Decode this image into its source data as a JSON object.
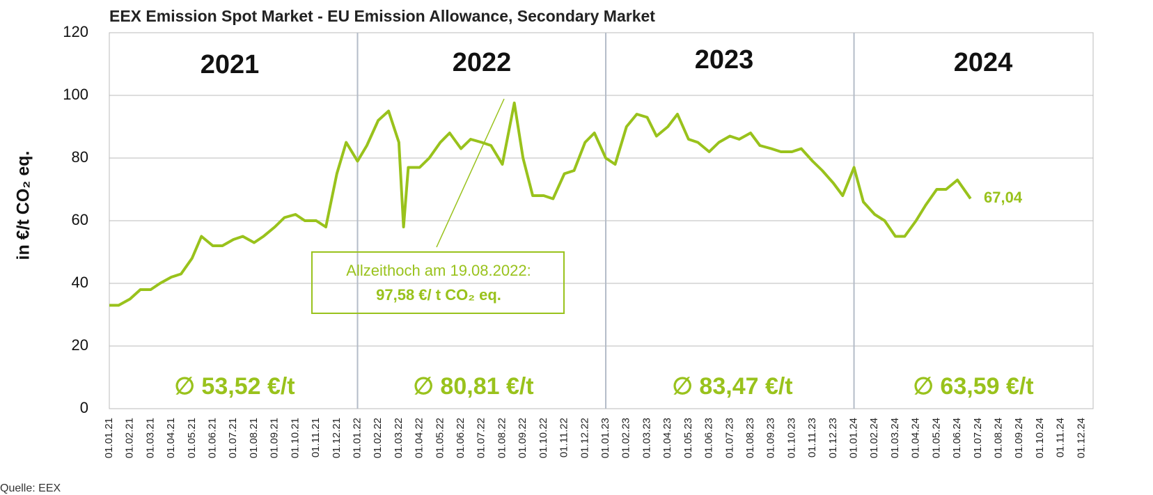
{
  "chart_data": {
    "type": "line",
    "title": "EEX Emission Spot Market - EU Emission Allowance, Secondary Market",
    "y_label": "in €/t CO₂ eq.",
    "source": "Quelle: EEX",
    "categories": [
      "01.01.21",
      "01.02.21",
      "01.03.21",
      "01.04.21",
      "01.05.21",
      "01.06.21",
      "01.07.21",
      "01.08.21",
      "01.09.21",
      "01.10.21",
      "01.11.21",
      "01.12.21",
      "01.01.22",
      "01.02.22",
      "01.03.22",
      "01.04.22",
      "01.05.22",
      "01.06.22",
      "01.07.22",
      "01.08.22",
      "01.09.22",
      "01.10.22",
      "01.11.22",
      "01.12.22",
      "01.01.23",
      "01.02.23",
      "01.03.23",
      "01.04.23",
      "01.05.23",
      "01.06.23",
      "01.07.23",
      "01.08.23",
      "01.09.23",
      "01.10.23",
      "01.11.23",
      "01.12.23",
      "01.01.24",
      "01.02.24",
      "01.03.24",
      "01.04.24",
      "01.05.24",
      "01.06.24",
      "01.07.24",
      "01.08.24",
      "01.09.24",
      "01.10.24",
      "01.11.24",
      "01.12.24"
    ],
    "series": [
      {
        "color": "#99c21c",
        "x": [
          "01.01.21",
          "15.01.21",
          "01.02.21",
          "15.02.21",
          "01.03.21",
          "15.03.21",
          "01.04.21",
          "15.04.21",
          "01.05.21",
          "15.05.21",
          "01.06.21",
          "15.06.21",
          "01.07.21",
          "15.07.21",
          "01.08.21",
          "15.08.21",
          "01.09.21",
          "15.09.21",
          "01.10.21",
          "15.10.21",
          "01.11.21",
          "15.11.21",
          "01.12.21",
          "15.12.21",
          "01.01.22",
          "15.01.22",
          "01.02.22",
          "15.02.22",
          "01.03.22",
          "08.03.22",
          "15.03.22",
          "01.04.22",
          "15.04.22",
          "01.05.22",
          "15.05.22",
          "01.06.22",
          "15.06.22",
          "01.07.22",
          "15.07.22",
          "01.08.22",
          "19.08.22",
          "01.09.22",
          "15.09.22",
          "01.10.22",
          "15.10.22",
          "01.11.22",
          "15.11.22",
          "01.12.22",
          "15.12.22",
          "01.01.23",
          "15.01.23",
          "01.02.23",
          "15.02.23",
          "01.03.23",
          "15.03.23",
          "01.04.23",
          "15.04.23",
          "01.05.23",
          "15.05.23",
          "01.06.23",
          "15.06.23",
          "01.07.23",
          "15.07.23",
          "01.08.23",
          "15.08.23",
          "01.09.23",
          "15.09.23",
          "01.10.23",
          "15.10.23",
          "01.11.23",
          "15.11.23",
          "01.12.23",
          "15.12.23",
          "01.01.24",
          "15.01.24",
          "01.02.24",
          "15.02.24",
          "01.03.24",
          "15.03.24",
          "01.04.24",
          "15.04.24",
          "01.05.24",
          "15.05.24",
          "01.06.24",
          "20.06.24"
        ],
        "values": [
          33,
          33,
          35,
          38,
          38,
          40,
          42,
          43,
          48,
          55,
          52,
          52,
          54,
          55,
          53,
          55,
          58,
          61,
          62,
          60,
          60,
          58,
          75,
          85,
          79,
          84,
          92,
          95,
          85,
          58,
          77,
          77,
          80,
          85,
          88,
          83,
          86,
          85,
          84,
          78,
          97.58,
          80,
          68,
          68,
          67,
          75,
          76,
          85,
          88,
          80,
          78,
          90,
          94,
          93,
          87,
          90,
          94,
          86,
          85,
          82,
          85,
          87,
          86,
          88,
          84,
          83,
          82,
          82,
          83,
          79,
          76,
          72,
          68,
          77,
          66,
          62,
          60,
          55,
          55,
          60,
          65,
          70,
          70,
          73,
          67.04
        ]
      }
    ],
    "last_value": {
      "value": 67.04,
      "label": "67,04"
    },
    "year_labels": [
      "2021",
      "2022",
      "2023",
      "2024"
    ],
    "averages": [
      "∅ 53,52 €/t",
      "∅ 80,81 €/t",
      "∅  83,47 €/t",
      "∅  63,59 €/t"
    ],
    "annotation": {
      "line1": "Allzeithoch am 19.08.2022:",
      "line2": "97,58 €/ t CO₂ eq."
    },
    "ylim": [
      0,
      120
    ],
    "yticks": [
      0,
      20,
      40,
      60,
      80,
      100,
      120
    ],
    "grid": true
  }
}
